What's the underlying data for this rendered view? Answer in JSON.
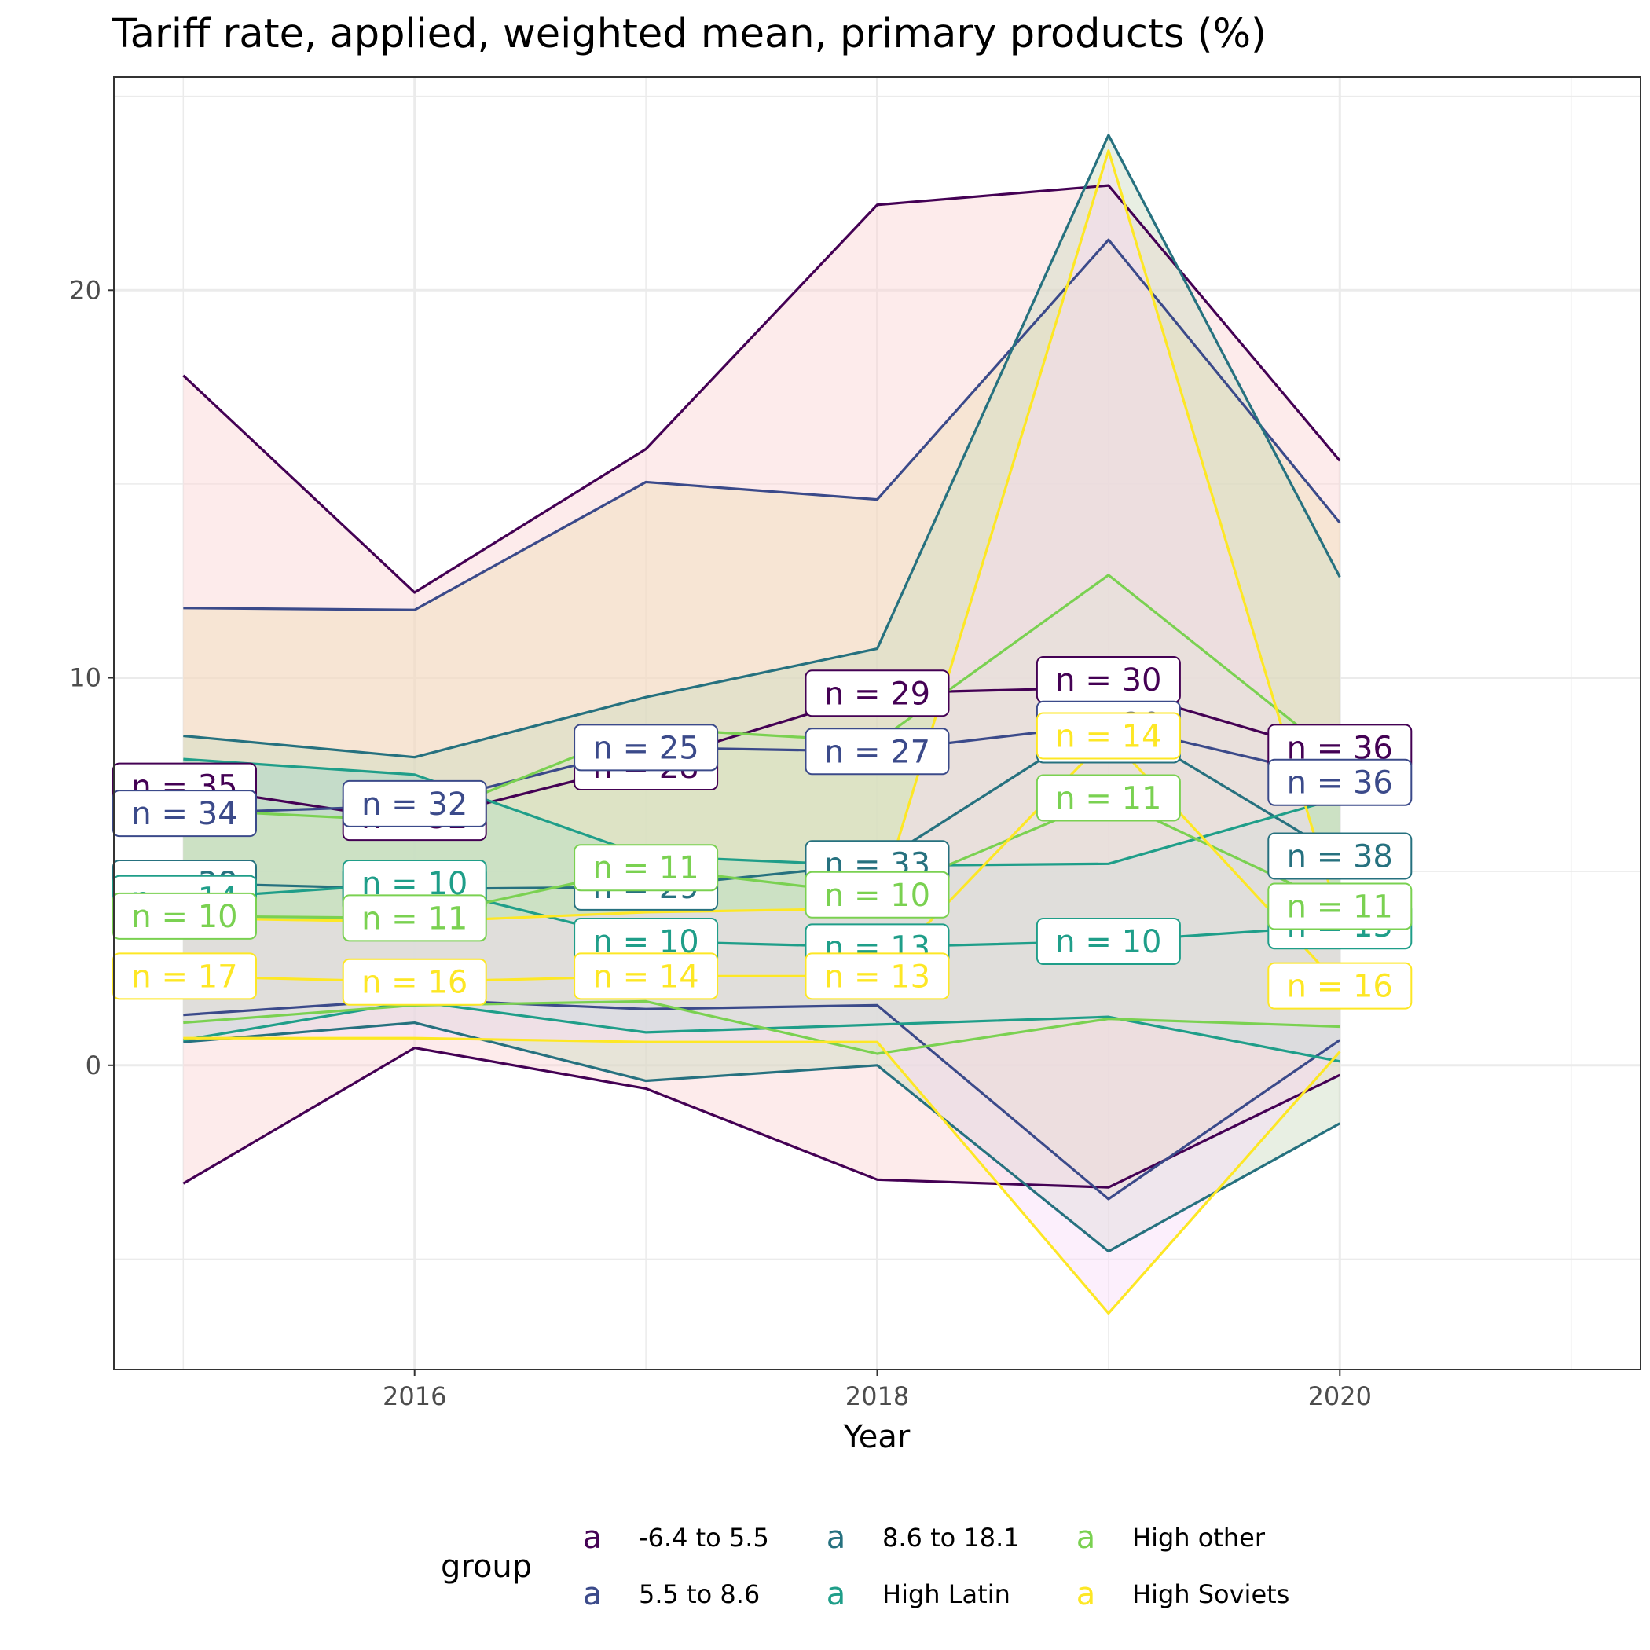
{
  "chart_data": {
    "type": "line",
    "title": "Tariff rate, applied, weighted mean, primary products (%)",
    "xlabel": "Year",
    "ylabel": "",
    "x": [
      2015,
      2016,
      2017,
      2018,
      2019,
      2020
    ],
    "xlim": [
      2014.7,
      2021.3
    ],
    "ylim": [
      -7.85,
      25.5
    ],
    "x_ticks": [
      2016,
      2018,
      2020
    ],
    "y_ticks": [
      0,
      10,
      20
    ],
    "grid": true,
    "legend_title": "group",
    "legend_position": "bottom",
    "legend_key_glyph": "a",
    "series": [
      {
        "name": "-6.4 to 5.5",
        "color": "#440154",
        "band_fill": "#fbd3d3",
        "upper": [
          17.8,
          12.2,
          15.9,
          22.2,
          22.7,
          15.6
        ],
        "mean": [
          7.2,
          6.3,
          7.8,
          9.6,
          9.75,
          8.0
        ],
        "lower": [
          -3.05,
          0.45,
          -0.6,
          -2.95,
          -3.15,
          -0.25
        ],
        "n": [
          35,
          32,
          28,
          29,
          30,
          36
        ],
        "label_offset": [
          0,
          0.1,
          -0.1,
          0,
          0.2,
          0.2
        ]
      },
      {
        "name": "5.5 to 8.6",
        "color": "#3b4a8a",
        "band_fill": "#f0ddb8",
        "upper": [
          11.8,
          11.75,
          15.05,
          14.6,
          21.3,
          14.0
        ],
        "mean": [
          6.5,
          6.7,
          8.2,
          8.1,
          8.8,
          7.4
        ],
        "lower": [
          1.3,
          1.7,
          1.45,
          1.55,
          -3.45,
          0.65
        ],
        "n": [
          34,
          32,
          25,
          27,
          30,
          36
        ],
        "label_offset": [
          0,
          0.05,
          0,
          0,
          0,
          -0.1
        ]
      },
      {
        "name": "8.6 to 18.1",
        "color": "#26717f",
        "band_fill": "#cddcc0",
        "upper": [
          8.5,
          7.95,
          9.5,
          10.75,
          24.0,
          12.6
        ],
        "mean": [
          4.7,
          4.55,
          4.6,
          5.2,
          9.0,
          5.4
        ],
        "lower": [
          0.6,
          1.1,
          -0.4,
          0.0,
          -4.8,
          -1.5
        ],
        "n": [
          38,
          10,
          29,
          33,
          34,
          38
        ],
        "label_offset": [
          0,
          0,
          0,
          0,
          -0.6,
          0
        ]
      },
      {
        "name": "High Latin",
        "color": "#1f9e89",
        "band_fill": "#9fd6c8",
        "upper": [
          7.9,
          7.5,
          5.4,
          5.15,
          5.2,
          6.9
        ],
        "mean": [
          4.3,
          4.7,
          3.2,
          3.05,
          3.2,
          3.6
        ],
        "lower": [
          0.65,
          1.65,
          0.85,
          1.05,
          1.25,
          0.1
        ],
        "n": [
          14,
          10,
          10,
          13,
          10,
          13
        ],
        "label_offset": [
          0,
          0,
          0,
          0,
          0,
          0
        ]
      },
      {
        "name": "High other",
        "color": "#7ad151",
        "band_fill": "#d4e7bf",
        "upper": [
          6.6,
          6.3,
          8.7,
          8.35,
          12.65,
          7.9
        ],
        "mean": [
          3.85,
          3.8,
          5.1,
          4.4,
          6.9,
          4.1
        ],
        "lower": [
          1.1,
          1.55,
          1.65,
          0.3,
          1.2,
          1.0
        ],
        "n": [
          10,
          11,
          11,
          10,
          11,
          11
        ],
        "label_offset": [
          0,
          0,
          0,
          0,
          0,
          0
        ]
      },
      {
        "name": "High Soviets",
        "color": "#fde725",
        "band_fill": "#f8dbf8",
        "upper": [
          3.8,
          3.7,
          3.95,
          4.05,
          23.6,
          3.75
        ],
        "mean": [
          2.3,
          2.15,
          2.3,
          2.3,
          8.5,
          2.05
        ],
        "lower": [
          0.7,
          0.7,
          0.6,
          0.6,
          -6.4,
          0.35
        ],
        "n": [
          17,
          16,
          14,
          13,
          14,
          16
        ],
        "label_offset": [
          0,
          0,
          0,
          0,
          0,
          0
        ]
      }
    ]
  }
}
